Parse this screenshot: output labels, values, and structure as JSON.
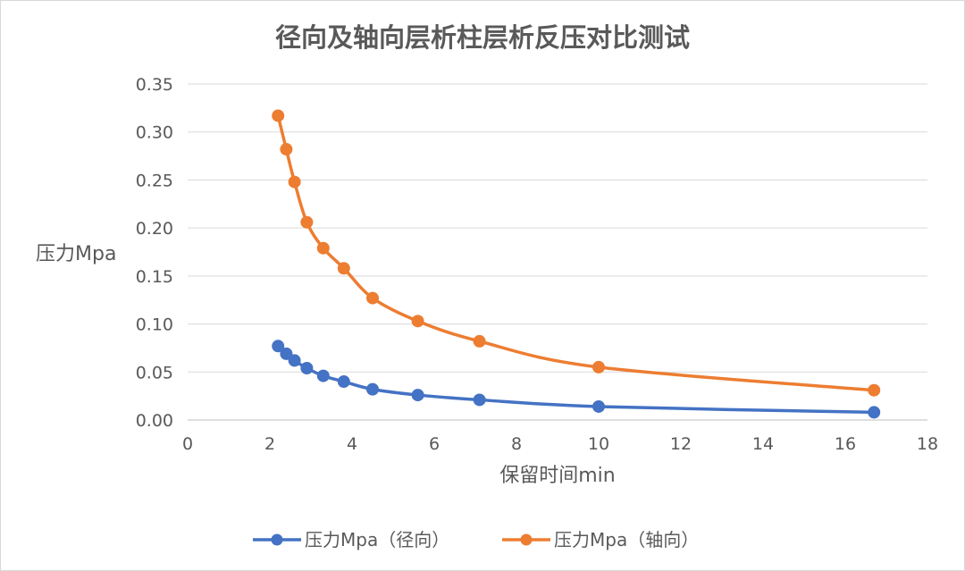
{
  "chart_data": {
    "type": "scatter",
    "title": "径向及轴向层析柱层析反压对比测试",
    "xlabel": "保留时间min",
    "ylabel": "压力Mpa",
    "xlim": [
      0,
      18
    ],
    "ylim": [
      0,
      0.35
    ],
    "xticks": [
      "0",
      "2",
      "4",
      "6",
      "8",
      "10",
      "12",
      "14",
      "16",
      "18"
    ],
    "yticks": [
      "0.00",
      "0.05",
      "0.10",
      "0.15",
      "0.20",
      "0.25",
      "0.30",
      "0.35"
    ],
    "grid": true,
    "legend": "bottom",
    "smooth_lines": true,
    "series": [
      {
        "name": "压力Mpa（径向）",
        "color": "#4472c4",
        "x": [
          2.2,
          2.4,
          2.6,
          2.9,
          3.3,
          3.8,
          4.5,
          5.6,
          7.1,
          10.0,
          16.7
        ],
        "y": [
          0.077,
          0.069,
          0.062,
          0.054,
          0.046,
          0.04,
          0.032,
          0.026,
          0.021,
          0.014,
          0.008
        ]
      },
      {
        "name": "压力Mpa（轴向）",
        "color": "#ed7d31",
        "x": [
          2.2,
          2.4,
          2.6,
          2.9,
          3.3,
          3.8,
          4.5,
          5.6,
          7.1,
          10.0,
          16.7
        ],
        "y": [
          0.317,
          0.282,
          0.248,
          0.206,
          0.179,
          0.158,
          0.127,
          0.103,
          0.082,
          0.055,
          0.031
        ]
      }
    ]
  }
}
